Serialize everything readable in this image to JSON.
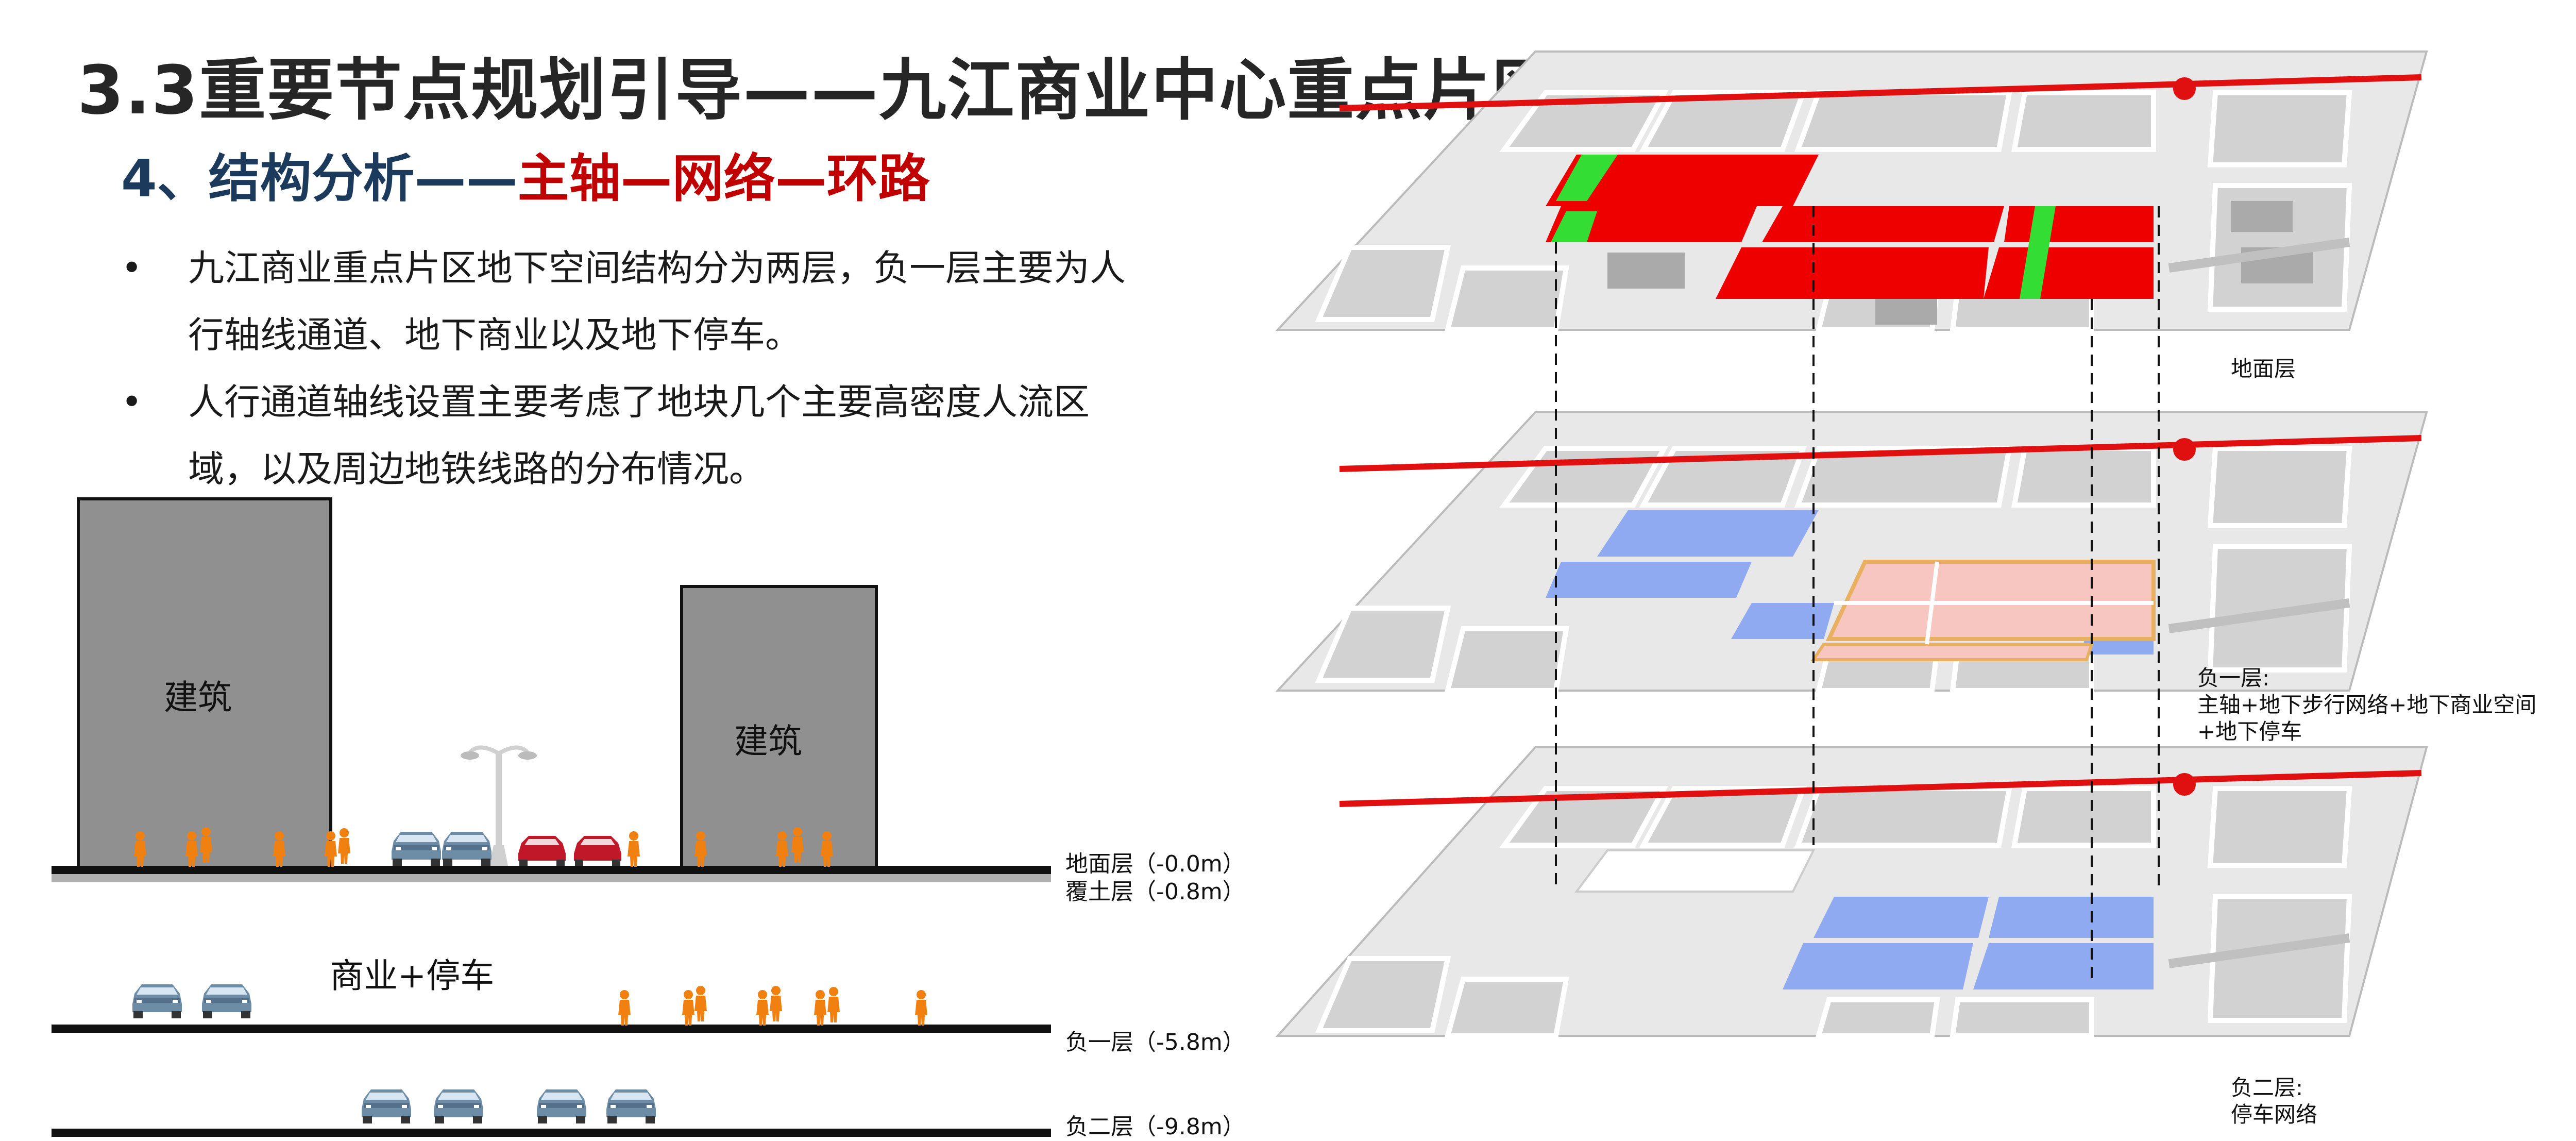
{
  "title": "3.3重要节点规划引导——九江商业中心重点片区",
  "subtitle": {
    "prefix": "4、结构分析——",
    "highlight": "主轴—网络—环路"
  },
  "bullets": [
    {
      "marker": "•",
      "text": "九江商业重点片区地下空间结构分为两层，负一层主要为人行轴线通道、地下商业以及地下停车。"
    },
    {
      "marker": "•",
      "text": "人行通道轴线设置主要考虑了地块几个主要高密度人流区域，以及周边地铁线路的分布情况。"
    }
  ],
  "section": {
    "building_label_1": "建筑",
    "building_label_2": "建筑",
    "underground_label": "商业+停车",
    "levels": [
      {
        "name": "地面层（-0.0m）"
      },
      {
        "name": "覆土层（-0.8m）"
      },
      {
        "name": "负一层（-5.8m）"
      },
      {
        "name": "负二层（-9.8m）"
      }
    ]
  },
  "axon": {
    "layer_captions": [
      "地面层",
      "负一层:\n主轴+地下步行网络+地下商业空间\n+地下停车",
      "负二层:\n停车网络"
    ]
  },
  "colors": {
    "ground_red": "#ee0000",
    "axis_green": "#33dd33",
    "b1_blue": "#8faaf0",
    "b1_pink": "#f7c6c0",
    "b1_ring": "#e8b060",
    "building_gray": "#909090",
    "block_gray": "#d4d4d4",
    "person_orange": "#f08010",
    "metro_red": "#e01010"
  }
}
